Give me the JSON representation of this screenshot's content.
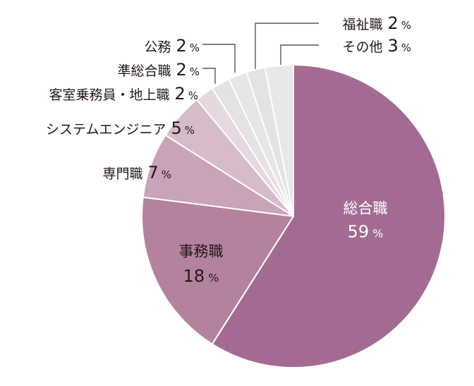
{
  "chart_data": {
    "type": "pie",
    "title": "",
    "start": "top",
    "direction": "clockwise",
    "unit": "%",
    "slices": [
      {
        "label": "総合職",
        "value": 59,
        "color": "#a46b92"
      },
      {
        "label": "事務職",
        "value": 18,
        "color": "#b4829f"
      },
      {
        "label": "専門職",
        "value": 7,
        "color": "#c8a3ba"
      },
      {
        "label": "システムエンジニア",
        "value": 5,
        "color": "#d6bccb"
      },
      {
        "label": "客室乗務員・地上職",
        "value": 2,
        "color": "#e6d8df"
      },
      {
        "label": "準総合職",
        "value": 2,
        "color": "#e3e3e3"
      },
      {
        "label": "公務",
        "value": 2,
        "color": "#e6e6e6"
      },
      {
        "label": "福祉職",
        "value": 2,
        "color": "#e3e3e3"
      },
      {
        "label": "その他",
        "value": 3,
        "color": "#e8e8e8"
      }
    ],
    "edge_color": "#ffffff",
    "label_text_color": "#231815",
    "inside_text_color": "#ffffff",
    "leader_color": "#595757"
  }
}
